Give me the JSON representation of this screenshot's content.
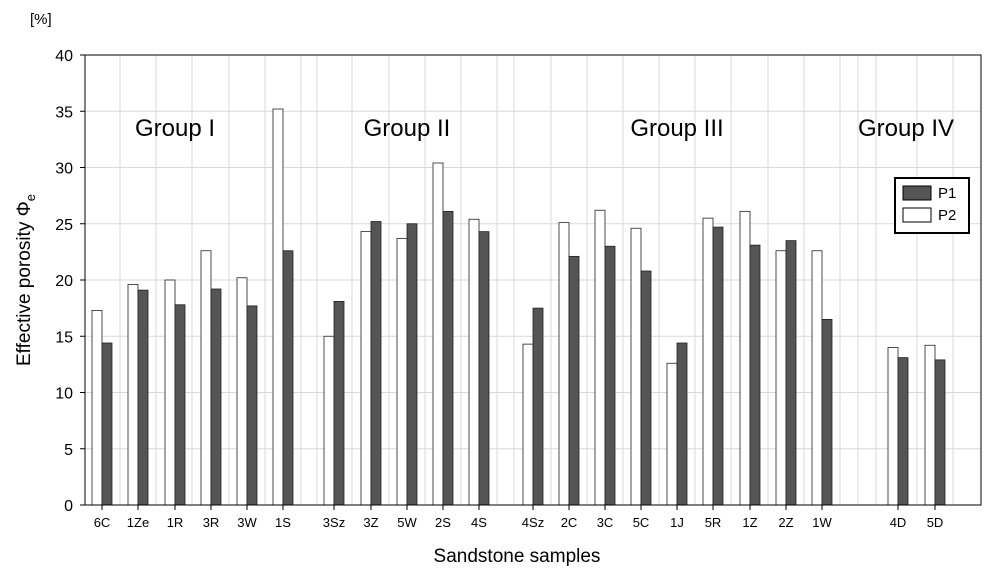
{
  "chart_data": {
    "type": "bar",
    "unit_label": "[%]",
    "ylabel": "Effective porosity Φ",
    "ylabel_subscript": "e",
    "xlabel": "Sandstone samples",
    "ylim": [
      0,
      40
    ],
    "yticks": [
      0,
      5,
      10,
      15,
      20,
      25,
      30,
      35,
      40
    ],
    "grid": true,
    "legend_position": "right",
    "categories": [
      "6C",
      "1Ze",
      "1R",
      "3R",
      "3W",
      "1S",
      "3Sz",
      "3Z",
      "5W",
      "2S",
      "4S",
      "4Sz",
      "2C",
      "3C",
      "5C",
      "1J",
      "5R",
      "1Z",
      "2Z",
      "1W",
      "4D",
      "5D"
    ],
    "series": [
      {
        "name": "P1",
        "color": "#555555",
        "values": [
          14.4,
          19.1,
          17.8,
          19.2,
          17.7,
          22.6,
          18.1,
          25.2,
          25.0,
          26.1,
          24.3,
          17.5,
          22.1,
          23.0,
          20.8,
          14.4,
          24.7,
          23.1,
          23.5,
          16.5,
          13.1,
          12.9
        ]
      },
      {
        "name": "P2",
        "color": "#ffffff",
        "values": [
          17.3,
          19.6,
          20.0,
          22.6,
          20.2,
          35.2,
          15.0,
          24.3,
          23.7,
          30.4,
          25.4,
          14.3,
          25.1,
          26.2,
          24.6,
          12.6,
          25.5,
          26.1,
          22.6,
          22.6,
          14.0,
          14.2
        ]
      }
    ],
    "groups": [
      {
        "label": "Group I"
      },
      {
        "label": "Group II"
      },
      {
        "label": "Group III"
      },
      {
        "label": "Group IV"
      }
    ]
  }
}
